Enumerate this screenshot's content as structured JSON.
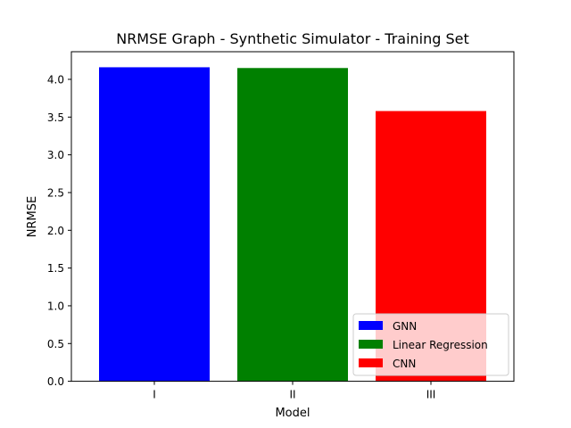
{
  "chart_data": {
    "type": "bar",
    "title": "NRMSE Graph - Synthetic Simulator - Training Set",
    "xlabel": "Model",
    "ylabel": "NRMSE",
    "categories": [
      "I",
      "II",
      "III"
    ],
    "values": [
      4.16,
      4.15,
      3.58
    ],
    "colors": [
      "#0000ff",
      "#008000",
      "#ff0000"
    ],
    "ylim": [
      0,
      4.366
    ],
    "yticks": [
      0.0,
      0.5,
      1.0,
      1.5,
      2.0,
      2.5,
      3.0,
      3.5,
      4.0
    ],
    "ytick_labels": [
      "0.0",
      "0.5",
      "1.0",
      "1.5",
      "2.0",
      "2.5",
      "3.0",
      "3.5",
      "4.0"
    ],
    "grid": false,
    "legend": {
      "placement": "lower-right",
      "entries": [
        {
          "label": "GNN",
          "color": "#0000ff"
        },
        {
          "label": "Linear Regression",
          "color": "#008000"
        },
        {
          "label": "CNN",
          "color": "#ff0000"
        }
      ]
    }
  }
}
